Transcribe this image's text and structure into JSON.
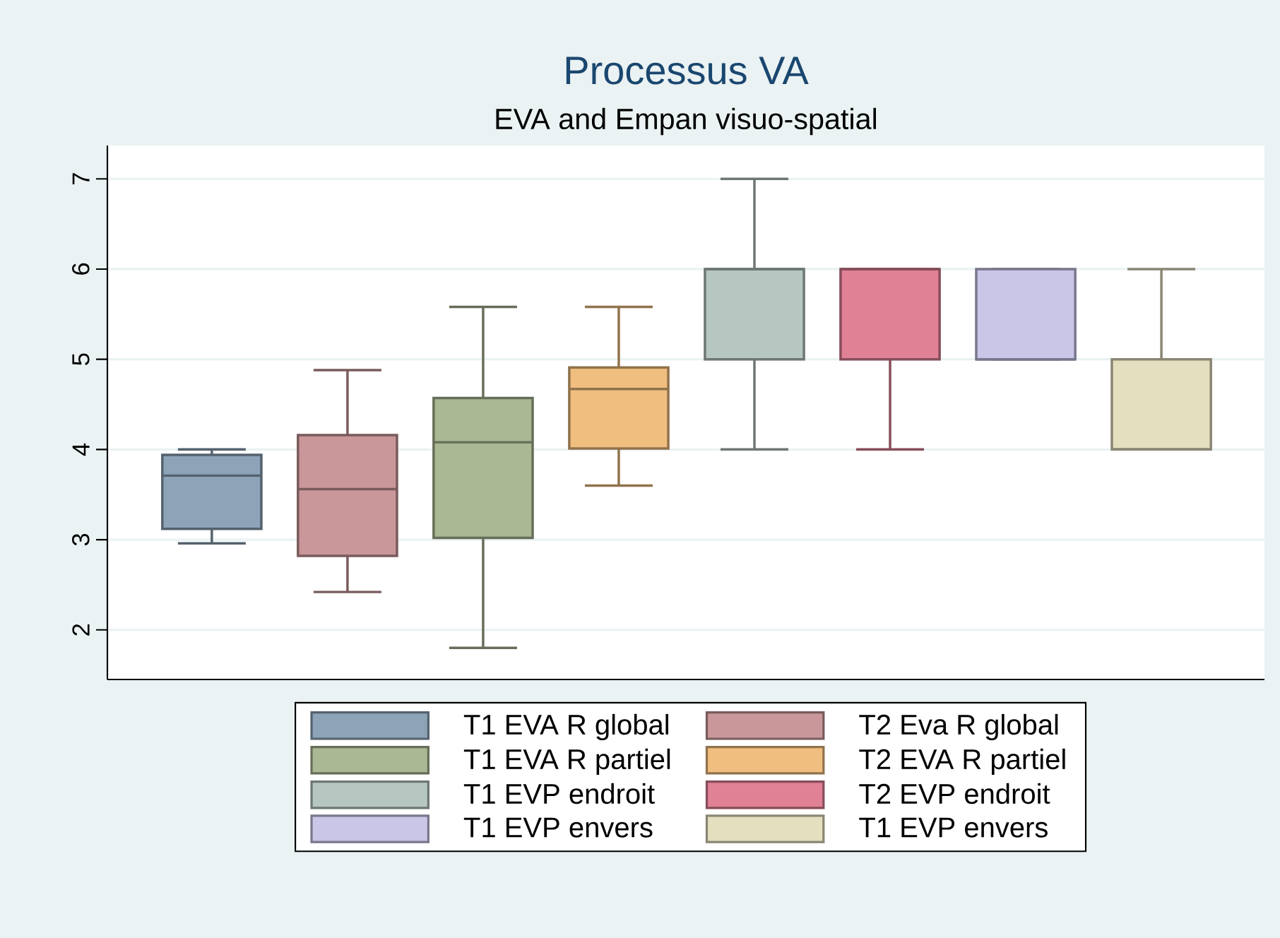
{
  "chart_data": {
    "type": "box",
    "title": "Processus VA",
    "subtitle": "EVA and Empan visuo-spatial",
    "categories": [
      null
    ],
    "ylim": [
      1.45,
      7.37
    ],
    "yticks": [
      2,
      3,
      4,
      5,
      6,
      7
    ],
    "grid": "y",
    "legend": "bottom",
    "tick_labels": "y",
    "series": [
      {
        "name": "T1 EVA R global",
        "color": "#8da3b8",
        "boxes": [
          {
            "low": 2.96,
            "q1": 3.12,
            "median": 3.71,
            "q3": 3.94,
            "high": 4.0
          }
        ]
      },
      {
        "name": "T2 Eva R global",
        "color": "#c9979a",
        "boxes": [
          {
            "low": 2.42,
            "q1": 2.82,
            "median": 3.56,
            "q3": 4.16,
            "high": 4.88
          }
        ]
      },
      {
        "name": "T1 EVA R partiel",
        "color": "#aab894",
        "boxes": [
          {
            "low": 1.8,
            "q1": 3.02,
            "median": 4.08,
            "q3": 4.57,
            "high": 5.58
          }
        ]
      },
      {
        "name": "T2 EVA R partiel",
        "color": "#f0be7f",
        "boxes": [
          {
            "low": 3.6,
            "q1": 4.01,
            "median": 4.67,
            "q3": 4.91,
            "high": 5.58
          }
        ]
      },
      {
        "name": "T1 EVP endroit",
        "color": "#b6c6c1",
        "boxes": [
          {
            "low": 4,
            "q1": 5,
            "median": 6,
            "q3": 6,
            "high": 7
          }
        ]
      },
      {
        "name": "T2 EVP endroit",
        "color": "#e08196",
        "boxes": [
          {
            "low": 4,
            "q1": 5,
            "median": 6,
            "q3": 6,
            "high": 6
          }
        ]
      },
      {
        "name": "T1 EVP envers",
        "color": "#c9c6e8",
        "boxes": [
          {
            "low": 5,
            "q1": 5,
            "median": 5,
            "q3": 6,
            "high": 6
          }
        ]
      },
      {
        "name": "T1 EVP envers",
        "color": "#e4e0bf",
        "boxes": [
          {
            "low": 4,
            "q1": 4,
            "median": 4,
            "q3": 5,
            "high": 6
          }
        ]
      }
    ]
  }
}
